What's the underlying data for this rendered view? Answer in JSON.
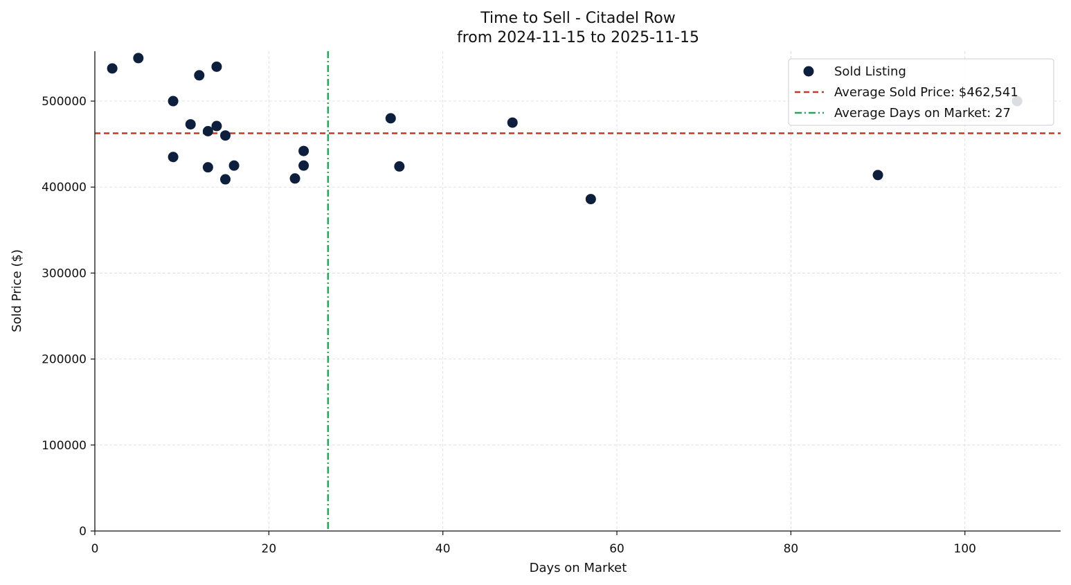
{
  "chart_data": {
    "type": "scatter",
    "title": "Time to Sell - Citadel Row",
    "subtitle": "from 2024-11-15 to 2025-11-15",
    "xlabel": "Days on Market",
    "ylabel": "Sold Price ($)",
    "xlim": [
      0,
      111
    ],
    "ylim": [
      0,
      558000
    ],
    "x_ticks": [
      0,
      20,
      40,
      60,
      80,
      100
    ],
    "y_ticks": [
      0,
      100000,
      200000,
      300000,
      400000,
      500000
    ],
    "grid": true,
    "legend_position": "top-right",
    "series": [
      {
        "name": "Sold Listing",
        "color": "#0d1f3c",
        "points": [
          {
            "x": 2,
            "y": 538000
          },
          {
            "x": 5,
            "y": 550000
          },
          {
            "x": 9,
            "y": 500000
          },
          {
            "x": 9,
            "y": 435000
          },
          {
            "x": 11,
            "y": 473000
          },
          {
            "x": 12,
            "y": 530000
          },
          {
            "x": 13,
            "y": 465000
          },
          {
            "x": 13,
            "y": 423000
          },
          {
            "x": 14,
            "y": 540000
          },
          {
            "x": 14,
            "y": 471000
          },
          {
            "x": 15,
            "y": 460000
          },
          {
            "x": 15,
            "y": 409000
          },
          {
            "x": 16,
            "y": 425000
          },
          {
            "x": 23,
            "y": 410000
          },
          {
            "x": 24,
            "y": 442000
          },
          {
            "x": 24,
            "y": 425000
          },
          {
            "x": 34,
            "y": 480000
          },
          {
            "x": 35,
            "y": 424000
          },
          {
            "x": 48,
            "y": 475000
          },
          {
            "x": 57,
            "y": 386000
          },
          {
            "x": 90,
            "y": 414000
          },
          {
            "x": 106,
            "y": 500000
          }
        ]
      }
    ],
    "reference_lines": {
      "avg_price": {
        "label": "Average Sold Price: $462,541",
        "value": 462541,
        "color": "#c0392b"
      },
      "avg_days": {
        "label": "Average Days on Market: 27",
        "value": 26.8,
        "color": "#27a35a"
      }
    }
  }
}
